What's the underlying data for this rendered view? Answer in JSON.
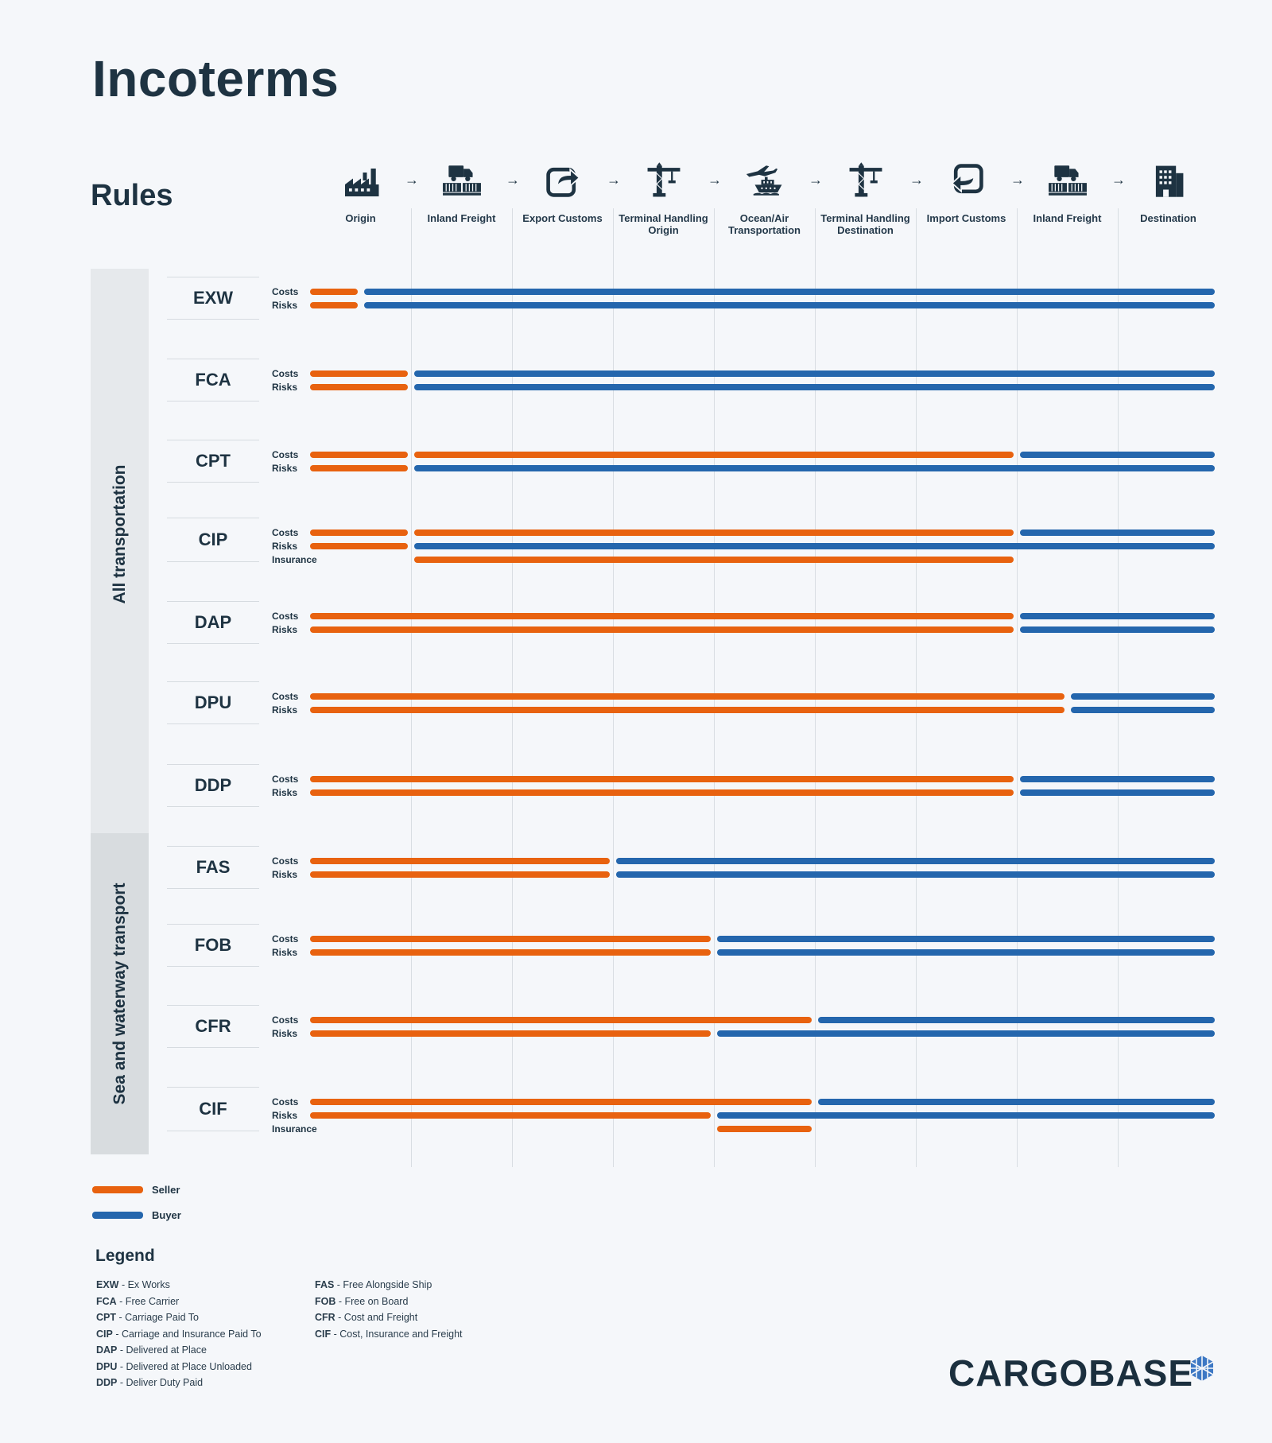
{
  "title": "Incoterms",
  "rules_heading": "Rules",
  "stages": [
    {
      "label": "Origin",
      "icon": "factory-icon"
    },
    {
      "label": "Inland Freight",
      "icon": "truck-icon"
    },
    {
      "label": "Export Customs",
      "icon": "export-icon"
    },
    {
      "label": "Terminal Handling Origin",
      "icon": "crane-icon"
    },
    {
      "label": "Ocean/Air Transportation",
      "icon": "ship-plane-icon"
    },
    {
      "label": "Terminal Handling Destination",
      "icon": "crane-icon"
    },
    {
      "label": "Import Customs",
      "icon": "import-icon"
    },
    {
      "label": "Inland Freight",
      "icon": "truck-icon"
    },
    {
      "label": "Destination",
      "icon": "building-icon"
    }
  ],
  "groups": [
    {
      "label": "All transportation"
    },
    {
      "label": "Sea and waterway transport"
    }
  ],
  "row_labels": {
    "costs": "Costs",
    "risks": "Risks",
    "insurance": "Insurance"
  },
  "rules": [
    {
      "code": "EXW",
      "costs_seller_until": 0.5,
      "risks_seller_until": 0.5
    },
    {
      "code": "FCA",
      "costs_seller_until": 1.0,
      "risks_seller_until": 1.0
    },
    {
      "code": "CPT",
      "costs_seller_until": 7.0,
      "costs_split_at": 1.0,
      "risks_seller_until": 1.0
    },
    {
      "code": "CIP",
      "costs_seller_until": 7.0,
      "costs_split_at": 1.0,
      "risks_seller_until": 1.0,
      "insurance_from": 1.0,
      "insurance_until": 7.0
    },
    {
      "code": "DAP",
      "costs_seller_until": 7.0,
      "risks_seller_until": 7.0
    },
    {
      "code": "DPU",
      "costs_seller_until": 7.5,
      "risks_seller_until": 7.5
    },
    {
      "code": "DDP",
      "costs_seller_until": 7.0,
      "risks_seller_until": 7.0
    },
    {
      "code": "FAS",
      "costs_seller_until": 3.0,
      "risks_seller_until": 3.0
    },
    {
      "code": "FOB",
      "costs_seller_until": 4.0,
      "risks_seller_until": 4.0
    },
    {
      "code": "CFR",
      "costs_seller_until": 5.0,
      "risks_seller_until": 4.0
    },
    {
      "code": "CIF",
      "costs_seller_until": 5.0,
      "risks_seller_until": 4.0,
      "insurance_from": 4.0,
      "insurance_until": 5.0
    }
  ],
  "key": {
    "seller": {
      "label": "Seller",
      "color": "#e8620f"
    },
    "buyer": {
      "label": "Buyer",
      "color": "#2466ad"
    }
  },
  "legend": {
    "heading": "Legend",
    "col1": [
      {
        "code": "EXW",
        "text": " - Ex Works"
      },
      {
        "code": "FCA",
        "text": " - Free Carrier"
      },
      {
        "code": "CPT",
        "text": " - Carriage Paid To"
      },
      {
        "code": "CIP",
        "text": " - Carriage and Insurance Paid To"
      },
      {
        "code": "DAP",
        "text": " - Delivered at Place"
      },
      {
        "code": "DPU",
        "text": " - Delivered at Place Unloaded"
      },
      {
        "code": "DDP",
        "text": " - Deliver Duty Paid"
      }
    ],
    "col2": [
      {
        "code": "FAS",
        "text": " - Free Alongside Ship"
      },
      {
        "code": "FOB",
        "text": " - Free on Board"
      },
      {
        "code": "CFR",
        "text": " - Cost and Freight"
      },
      {
        "code": "CIF",
        "text": " - Cost, Insurance and Freight"
      }
    ]
  },
  "brand": "CARGOBASE"
}
